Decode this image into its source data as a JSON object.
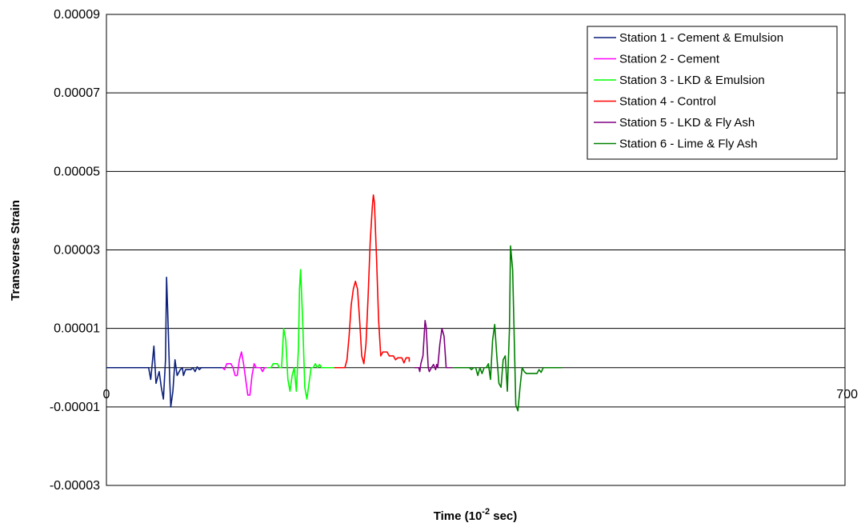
{
  "chart_data": {
    "type": "line",
    "xlabel": "Time (10",
    "xlabel_sup": "-2",
    "xlabel_end": " sec)",
    "ylabel": "Transverse Strain",
    "xlim": [
      0,
      700
    ],
    "ylim": [
      -3e-05,
      9e-05
    ],
    "yticks": [
      -3e-05,
      -1e-05,
      1e-05,
      3e-05,
      5e-05,
      7e-05,
      9e-05
    ],
    "ytick_labels": [
      "-0.00003",
      "-0.00001",
      "0.00001",
      "0.00003",
      "0.00005",
      "0.00007",
      "0.00009"
    ],
    "xtick_labels": [
      "0",
      "700"
    ],
    "grid": true,
    "legend_position": "top-right",
    "series": [
      {
        "name": "Station 1 - Cement & Emulsion",
        "color": "#0b1f7a",
        "points": [
          [
            0,
            0
          ],
          [
            40,
            0
          ],
          [
            42,
            -3e-06
          ],
          [
            45,
            5.5e-06
          ],
          [
            47,
            -4e-06
          ],
          [
            50,
            -1e-06
          ],
          [
            52,
            -5e-06
          ],
          [
            54,
            -8e-06
          ],
          [
            56,
            2e-06
          ],
          [
            57,
            2.3e-05
          ],
          [
            58,
            1.5e-05
          ],
          [
            60,
            -3e-06
          ],
          [
            61,
            -1e-05
          ],
          [
            63,
            -6e-06
          ],
          [
            65,
            2e-06
          ],
          [
            67,
            -2e-06
          ],
          [
            70,
            -5e-07
          ],
          [
            72,
            0
          ],
          [
            73,
            -2e-06
          ],
          [
            75,
            -5e-07
          ],
          [
            80,
            -5e-07
          ],
          [
            82,
            0
          ],
          [
            84,
            -1e-06
          ],
          [
            86,
            2e-07
          ],
          [
            88,
            -5e-07
          ],
          [
            90,
            0
          ],
          [
            94,
            0
          ],
          [
            110,
            0
          ]
        ]
      },
      {
        "name": "Station 2 - Cement",
        "color": "#ff00ff",
        "points": [
          [
            110,
            0
          ],
          [
            112,
            -5e-07
          ],
          [
            114,
            1e-06
          ],
          [
            118,
            1e-06
          ],
          [
            120,
            0
          ],
          [
            122,
            -2e-06
          ],
          [
            124,
            -2e-06
          ],
          [
            126,
            2e-06
          ],
          [
            128,
            4e-06
          ],
          [
            130,
            1e-06
          ],
          [
            132,
            -3e-06
          ],
          [
            134,
            -7e-06
          ],
          [
            136,
            -7e-06
          ],
          [
            138,
            -2e-06
          ],
          [
            140,
            1e-06
          ],
          [
            142,
            0
          ],
          [
            146,
            0
          ],
          [
            148,
            -1e-06
          ],
          [
            150,
            0
          ],
          [
            152,
            0
          ]
        ]
      },
      {
        "name": "Station 3 - LKD & Emulsion",
        "color": "#00ff00",
        "points": [
          [
            152,
            0
          ],
          [
            156,
            0
          ],
          [
            158,
            1e-06
          ],
          [
            162,
            1e-06
          ],
          [
            164,
            0
          ],
          [
            166,
            0
          ],
          [
            168,
            1e-05
          ],
          [
            170,
            7e-06
          ],
          [
            172,
            -3e-06
          ],
          [
            174,
            -6e-06
          ],
          [
            176,
            -2e-06
          ],
          [
            178,
            0
          ],
          [
            180,
            -6e-06
          ],
          [
            182,
            5e-06
          ],
          [
            183,
            2e-05
          ],
          [
            184,
            2.5e-05
          ],
          [
            186,
            1.2e-05
          ],
          [
            188,
            -5e-06
          ],
          [
            190,
            -8e-06
          ],
          [
            192,
            -4e-06
          ],
          [
            194,
            0
          ],
          [
            196,
            0
          ],
          [
            198,
            1e-06
          ],
          [
            200,
            0
          ],
          [
            202,
            8e-07
          ],
          [
            204,
            0
          ],
          [
            216,
            0
          ]
        ]
      },
      {
        "name": "Station 4 - Control",
        "color": "#ff0000",
        "points": [
          [
            216,
            0
          ],
          [
            226,
            0
          ],
          [
            228,
            2e-06
          ],
          [
            230,
            8e-06
          ],
          [
            232,
            1.6e-05
          ],
          [
            234,
            2e-05
          ],
          [
            236,
            2.2e-05
          ],
          [
            238,
            2e-05
          ],
          [
            240,
            1.2e-05
          ],
          [
            242,
            3e-06
          ],
          [
            244,
            1e-06
          ],
          [
            246,
            6e-06
          ],
          [
            248,
            1.8e-05
          ],
          [
            250,
            3.2e-05
          ],
          [
            252,
            4.1e-05
          ],
          [
            253,
            4.4e-05
          ],
          [
            254,
            4.2e-05
          ],
          [
            256,
            2.8e-05
          ],
          [
            258,
            1.2e-05
          ],
          [
            260,
            3e-06
          ],
          [
            262,
            4e-06
          ],
          [
            266,
            4e-06
          ],
          [
            268,
            3e-06
          ],
          [
            272,
            3e-06
          ],
          [
            274,
            2e-06
          ],
          [
            276,
            2.5e-06
          ],
          [
            280,
            2.5e-06
          ],
          [
            282,
            1.2e-06
          ],
          [
            284,
            2.5e-06
          ],
          [
            287,
            2.5e-06
          ],
          [
            287,
            1.5e-06
          ]
        ]
      },
      {
        "name": "Station 5 - LKD & Fly Ash",
        "color": "#800080",
        "points": [
          [
            292,
            0
          ],
          [
            296,
            0
          ],
          [
            297,
            -1e-06
          ],
          [
            298,
            1e-06
          ],
          [
            300,
            3e-06
          ],
          [
            302,
            1.2e-05
          ],
          [
            303,
            1.05e-05
          ],
          [
            305,
            0
          ],
          [
            306,
            -1e-06
          ],
          [
            308,
            0
          ],
          [
            310,
            8e-07
          ],
          [
            312,
            -5e-07
          ],
          [
            313,
            8e-07
          ],
          [
            314,
            0
          ],
          [
            316,
            6e-06
          ],
          [
            318,
            1e-05
          ],
          [
            320,
            8e-06
          ],
          [
            322,
            0
          ],
          [
            324,
            0
          ],
          [
            328,
            0
          ]
        ]
      },
      {
        "name": "Station 6 - Lime & Fly Ash",
        "color": "#008000",
        "points": [
          [
            328,
            0
          ],
          [
            344,
            0
          ],
          [
            346,
            -5e-07
          ],
          [
            348,
            0
          ],
          [
            350,
            0
          ],
          [
            352,
            -2e-06
          ],
          [
            354,
            0
          ],
          [
            356,
            -1.5e-06
          ],
          [
            358,
            0
          ],
          [
            360,
            0
          ],
          [
            362,
            1e-06
          ],
          [
            364,
            -3e-06
          ],
          [
            366,
            7e-06
          ],
          [
            368,
            1.1e-05
          ],
          [
            370,
            3e-06
          ],
          [
            372,
            -4e-06
          ],
          [
            374,
            -5e-06
          ],
          [
            376,
            2e-06
          ],
          [
            378,
            3e-06
          ],
          [
            380,
            -6e-06
          ],
          [
            382,
            1e-05
          ],
          [
            383,
            3.1e-05
          ],
          [
            385,
            2.5e-05
          ],
          [
            387,
            2e-06
          ],
          [
            388,
            -9.5e-06
          ],
          [
            390,
            -1.1e-05
          ],
          [
            392,
            -5e-06
          ],
          [
            394,
            0
          ],
          [
            396,
            -1e-06
          ],
          [
            398,
            -1.5e-06
          ],
          [
            402,
            -1.5e-06
          ],
          [
            408,
            -1.5e-06
          ],
          [
            410,
            -5e-07
          ],
          [
            412,
            -1.2e-06
          ],
          [
            414,
            0
          ],
          [
            432,
            0
          ]
        ]
      }
    ]
  }
}
